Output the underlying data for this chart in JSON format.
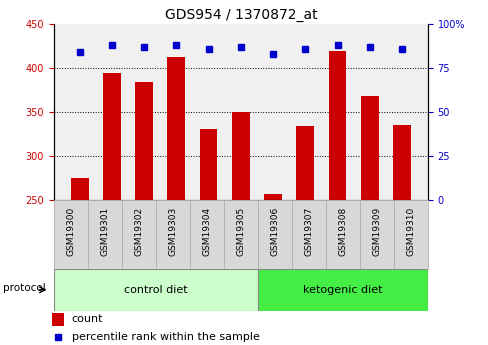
{
  "title": "GDS954 / 1370872_at",
  "samples": [
    "GSM19300",
    "GSM19301",
    "GSM19302",
    "GSM19303",
    "GSM19304",
    "GSM19305",
    "GSM19306",
    "GSM19307",
    "GSM19308",
    "GSM19309",
    "GSM19310"
  ],
  "counts": [
    275,
    395,
    384,
    413,
    331,
    350,
    257,
    334,
    420,
    368,
    335
  ],
  "percentile_ranks": [
    84,
    88,
    87,
    88,
    86,
    87,
    83,
    86,
    88,
    87,
    86
  ],
  "ylim_left": [
    250,
    450
  ],
  "ylim_right": [
    0,
    100
  ],
  "yticks_left": [
    250,
    300,
    350,
    400,
    450
  ],
  "yticks_right": [
    0,
    25,
    50,
    75,
    100
  ],
  "bar_color": "#cc0000",
  "dot_color": "#0000cc",
  "control_count": 6,
  "ketogenic_count": 5,
  "control_label": "control diet",
  "ketogenic_label": "ketogenic diet",
  "protocol_label": "protocol",
  "legend_count": "count",
  "legend_percentile": "percentile rank within the sample",
  "bg_plot": "#f0f0f0",
  "bg_sample_box": "#d8d8d8",
  "bg_control": "#ccffcc",
  "bg_ketogenic": "#44ee44",
  "title_fontsize": 10,
  "tick_fontsize": 7,
  "sample_fontsize": 6.5,
  "legend_fontsize": 8
}
